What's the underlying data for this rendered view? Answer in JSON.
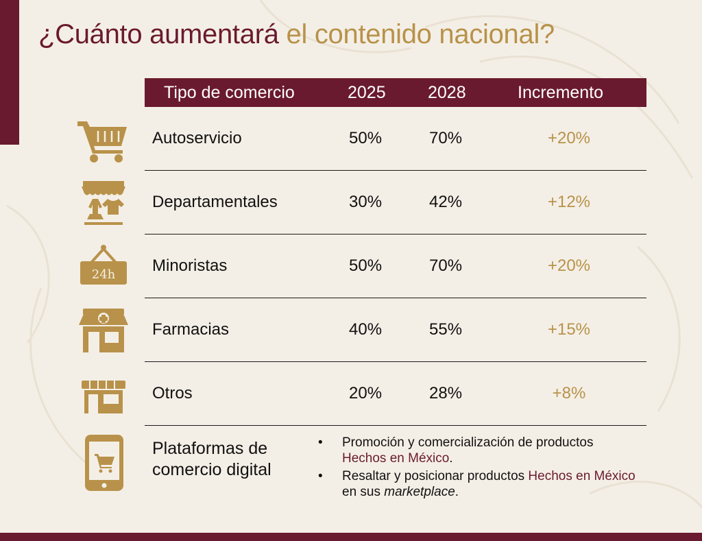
{
  "title": {
    "part1": "¿Cuánto aumentará",
    "part2": "el contenido nacional?"
  },
  "colors": {
    "primary": "#6a1a2e",
    "accent": "#b8924a",
    "background": "#f4efe6"
  },
  "table": {
    "headers": {
      "type": "Tipo de comercio",
      "y2025": "2025",
      "y2028": "2028",
      "increase": "Incremento"
    },
    "rows": [
      {
        "icon": "shopping-cart-icon",
        "name": "Autoservicio",
        "y2025": "50%",
        "y2028": "70%",
        "increase": "+20%"
      },
      {
        "icon": "clothing-store-icon",
        "name": "Departamentales",
        "y2025": "30%",
        "y2028": "42%",
        "increase": "+12%"
      },
      {
        "icon": "open-24h-sign-icon",
        "icon_text": "24h",
        "name": "Minoristas",
        "y2025": "50%",
        "y2028": "70%",
        "increase": "+20%"
      },
      {
        "icon": "pharmacy-icon",
        "name": "Farmacias",
        "y2025": "40%",
        "y2028": "55%",
        "increase": "+15%"
      },
      {
        "icon": "shop-icon",
        "name": "Otros",
        "y2025": "20%",
        "y2028": "28%",
        "increase": "+8%"
      }
    ]
  },
  "platforms": {
    "icon": "mobile-shopping-icon",
    "name_line1": "Plataformas de",
    "name_line2": "comercio digital",
    "bullet1": {
      "text": "Promoción y comercialización de productos",
      "highlight": "Hechos en México",
      "end": "."
    },
    "bullet2": {
      "text": "Resaltar y posicionar productos",
      "highlight": "Hechos en México",
      "middle": "en sus",
      "emphasis": "marketplace",
      "end": "."
    }
  }
}
